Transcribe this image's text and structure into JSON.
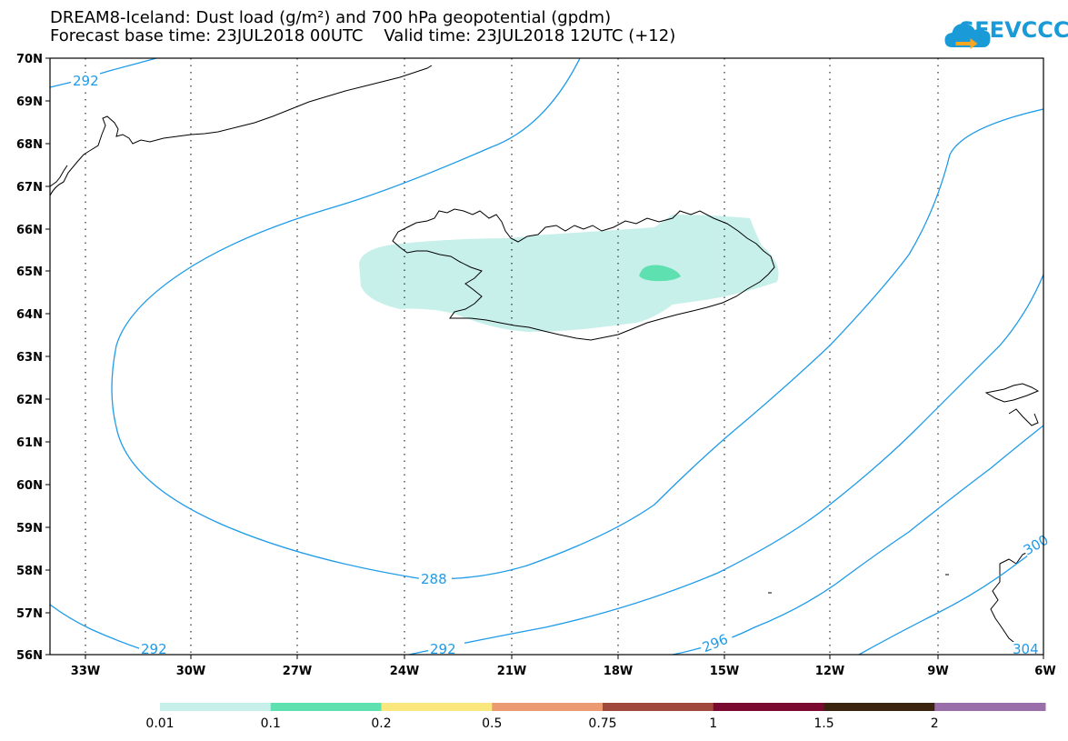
{
  "header": {
    "line1": "DREAM8-Iceland: Dust load (g/m²) and 700 hPa geopotential (gpdm)",
    "line2": "Forecast base time: 23JUL2018 00UTC    Valid time: 23JUL2018 12UTC (+12)"
  },
  "logo": {
    "text": "SEEVCCC",
    "color": "#1a9ad6"
  },
  "axes": {
    "lat_labels": [
      "70N",
      "69N",
      "68N",
      "67N",
      "66N",
      "65N",
      "64N",
      "63N",
      "62N",
      "61N",
      "60N",
      "59N",
      "58N",
      "57N",
      "56N"
    ],
    "lon_labels": [
      "33W",
      "30W",
      "27W",
      "24W",
      "21W",
      "18W",
      "15W",
      "12W",
      "9W",
      "6W"
    ],
    "lat_range": [
      56,
      70
    ],
    "lon_range": [
      -34.2,
      -6
    ]
  },
  "contours": {
    "color": "#1e9be9",
    "labels": [
      "292",
      "288",
      "292",
      "292",
      "296",
      "300",
      "304"
    ]
  },
  "dust": {
    "light_color": "#c8f0ea",
    "dark_color": "#5ee0b0"
  },
  "colorbar": {
    "colors": [
      "#c8f0ea",
      "#5ee0b0",
      "#fae87e",
      "#eb9a72",
      "#a0483c",
      "#7a0a30",
      "#3a2410",
      "#9a6ea8"
    ],
    "labels": [
      "0.01",
      "0.1",
      "0.2",
      "0.5",
      "0.75",
      "1",
      "1.5",
      "2"
    ]
  }
}
